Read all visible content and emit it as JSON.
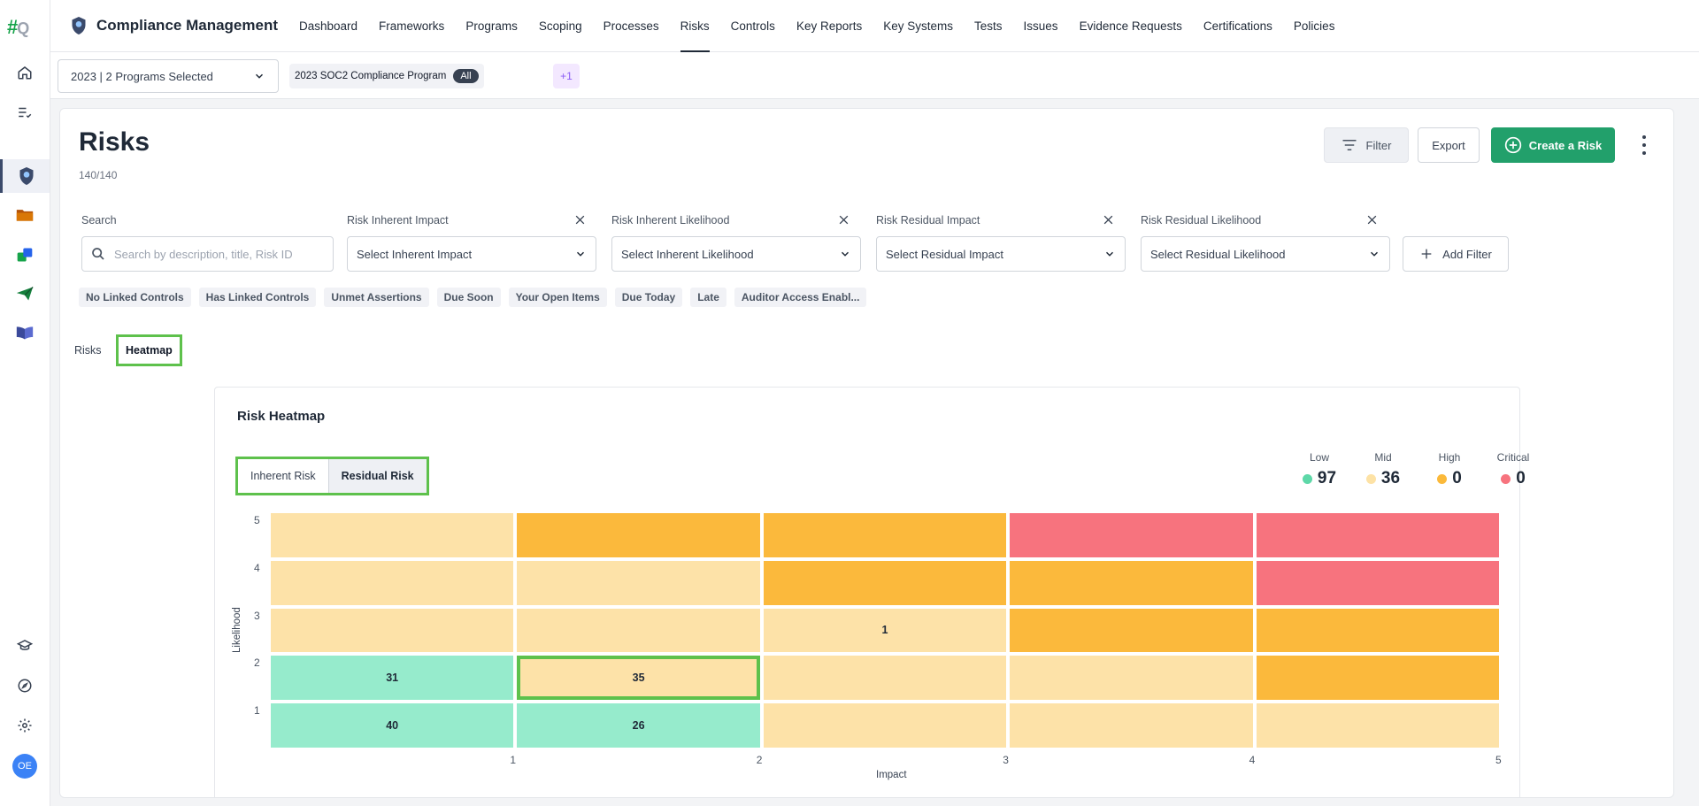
{
  "app": {
    "logo_main": "#",
    "logo_sub": "Q",
    "title": "Compliance Management",
    "user_initials": "OE"
  },
  "rail": {
    "icons": [
      "home-icon",
      "tasks-icon",
      "compliance-badge-icon",
      "folder-icon",
      "integrations-icon",
      "send-icon",
      "book-icon",
      "learn-icon",
      "compass-icon",
      "gear-icon"
    ]
  },
  "nav": {
    "items": [
      "Dashboard",
      "Frameworks",
      "Programs",
      "Scoping",
      "Processes",
      "Risks",
      "Controls",
      "Key Reports",
      "Key Systems",
      "Tests",
      "Issues",
      "Evidence Requests",
      "Certifications",
      "Policies"
    ],
    "active_index": 5
  },
  "program": {
    "selector": "2023 | 2 Programs Selected",
    "chip_label": "2023 SOC2 Compliance Program",
    "chip_pill": "All",
    "more": "+1"
  },
  "page": {
    "title": "Risks",
    "count": "140/140",
    "filter_btn": "Filter",
    "export_btn": "Export",
    "create_btn": "Create a Risk"
  },
  "filters": {
    "search_label": "Search",
    "search_placeholder": "Search by description, title, Risk ID",
    "inherent_impact_label": "Risk Inherent Impact",
    "inherent_impact_value": "Select Inherent Impact",
    "inherent_likelihood_label": "Risk Inherent Likelihood",
    "inherent_likelihood_value": "Select Inherent Likelihood",
    "residual_impact_label": "Risk Residual Impact",
    "residual_impact_value": "Select Residual Impact",
    "residual_likelihood_label": "Risk Residual Likelihood",
    "residual_likelihood_value": "Select Residual Likelihood",
    "add_filter": "Add Filter"
  },
  "quick_filters": [
    "No Linked Controls",
    "Has Linked Controls",
    "Unmet Assertions",
    "Due Soon",
    "Your Open Items",
    "Due Today",
    "Late",
    "Auditor Access Enabl..."
  ],
  "view_tabs": {
    "risks": "Risks",
    "heatmap": "Heatmap",
    "active": "heatmap"
  },
  "heatmap": {
    "title": "Risk Heatmap",
    "toggle": {
      "inherent": "Inherent Risk",
      "residual": "Residual Risk",
      "active": "residual"
    },
    "legend": [
      {
        "name": "Low",
        "value": "97",
        "color": "#5ed8a8"
      },
      {
        "name": "Mid",
        "value": "36",
        "color": "#fde2a5"
      },
      {
        "name": "High",
        "value": "0",
        "color": "#fbb93a"
      },
      {
        "name": "Critical",
        "value": "0",
        "color": "#f7737e"
      }
    ],
    "colors": {
      "low": "#96ebcc",
      "mid": "#fde2a8",
      "high": "#fbb93c",
      "critical": "#f7737e",
      "selected_outline": "#5ec14c"
    }
  },
  "chart_data": {
    "type": "heatmap",
    "title": "Risk Heatmap",
    "xlabel": "Impact",
    "ylabel": "Likelihood",
    "x_ticks": [
      "1",
      "2",
      "3",
      "4",
      "5"
    ],
    "y_ticks": [
      "5",
      "4",
      "3",
      "2",
      "1"
    ],
    "rows": [
      {
        "likelihood": 5,
        "levels": [
          "mid",
          "high",
          "high",
          "critical",
          "critical"
        ],
        "counts": [
          "",
          "",
          "",
          "",
          ""
        ]
      },
      {
        "likelihood": 4,
        "levels": [
          "mid",
          "mid",
          "high",
          "high",
          "critical"
        ],
        "counts": [
          "",
          "",
          "",
          "",
          ""
        ]
      },
      {
        "likelihood": 3,
        "levels": [
          "mid",
          "mid",
          "mid",
          "high",
          "high"
        ],
        "counts": [
          "",
          "",
          "1",
          "",
          ""
        ]
      },
      {
        "likelihood": 2,
        "levels": [
          "low",
          "mid",
          "mid",
          "mid",
          "high"
        ],
        "counts": [
          "31",
          "35",
          "",
          "",
          ""
        ]
      },
      {
        "likelihood": 1,
        "levels": [
          "low",
          "low",
          "mid",
          "mid",
          "mid"
        ],
        "counts": [
          "40",
          "26",
          "",
          "",
          ""
        ]
      }
    ],
    "selected_cell": {
      "likelihood": 2,
      "impact": 2
    }
  }
}
